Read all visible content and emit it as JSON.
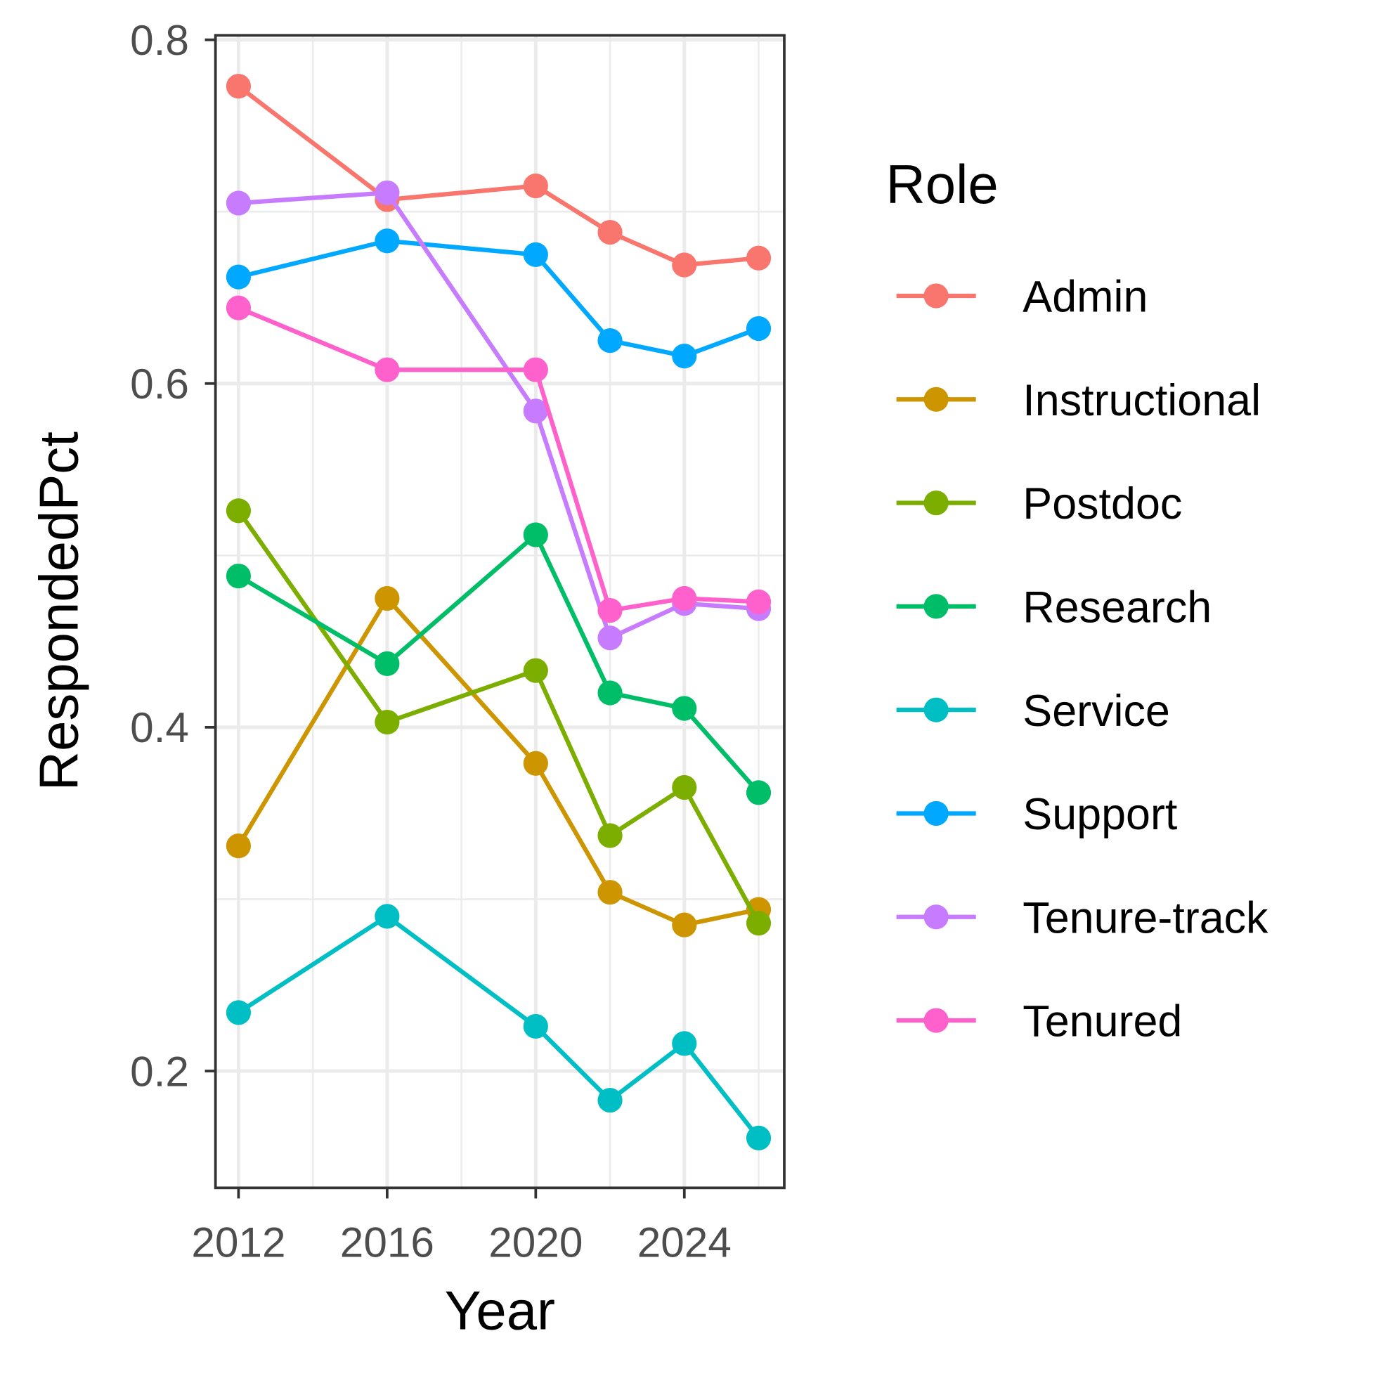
{
  "chart_data": {
    "type": "line",
    "x_label": "Year",
    "y_label": "RespondedPct",
    "legend_title": "Role",
    "x": [
      2012,
      2016,
      2020,
      2022,
      2024,
      2026
    ],
    "xlim": [
      2011.38,
      2026.69
    ],
    "xticks": [
      2012,
      2016,
      2020,
      2024
    ],
    "ylim": [
      0.132,
      0.8026
    ],
    "yticks": [
      0.2,
      0.4,
      0.6,
      0.8
    ],
    "grid": true,
    "legend": "right",
    "series": [
      {
        "name": "Admin",
        "color": "#F8766D",
        "values": [
          0.773,
          0.707,
          0.715,
          0.688,
          0.669,
          0.673
        ]
      },
      {
        "name": "Instructional",
        "color": "#CD9600",
        "values": [
          0.331,
          0.475,
          0.379,
          0.304,
          0.285,
          0.294
        ]
      },
      {
        "name": "Postdoc",
        "color": "#7CAE00",
        "values": [
          0.526,
          0.403,
          0.433,
          0.337,
          0.365,
          0.286
        ]
      },
      {
        "name": "Research",
        "color": "#00BE67",
        "values": [
          0.488,
          0.437,
          0.512,
          0.42,
          0.411,
          0.362
        ]
      },
      {
        "name": "Service",
        "color": "#00BFC4",
        "values": [
          0.234,
          0.29,
          0.226,
          0.183,
          0.216,
          0.161
        ]
      },
      {
        "name": "Support",
        "color": "#00A9FF",
        "values": [
          0.662,
          0.683,
          0.675,
          0.625,
          0.616,
          0.632
        ]
      },
      {
        "name": "Tenure-track",
        "color": "#C77CFF",
        "values": [
          0.705,
          0.711,
          0.584,
          0.452,
          0.472,
          0.469
        ]
      },
      {
        "name": "Tenured",
        "color": "#FF61CC",
        "values": [
          0.644,
          0.608,
          0.608,
          0.468,
          0.475,
          0.473
        ]
      }
    ]
  }
}
